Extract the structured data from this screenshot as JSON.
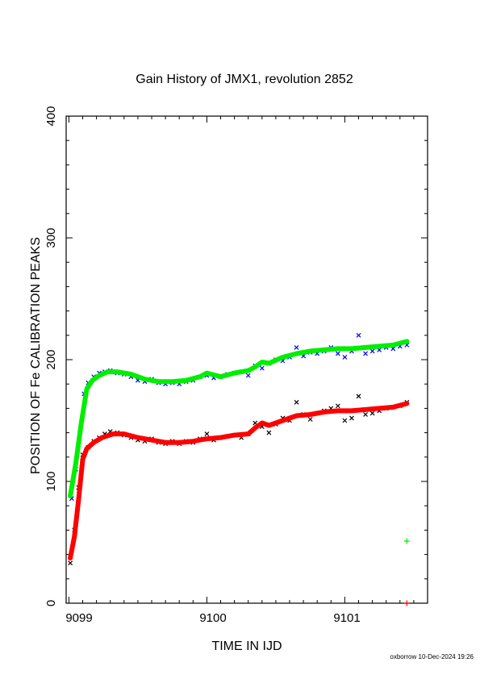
{
  "chart_data": {
    "type": "scatter",
    "title": "Gain History of JMX1, revolution 2852",
    "xlabel": "TIME IN IJD",
    "ylabel": "POSITION OF Fe CALIBRATION PEAKS",
    "xlim": [
      9098.98,
      9101.6
    ],
    "ylim": [
      0,
      400
    ],
    "x_ticks": [
      "9099",
      "9100",
      "9101"
    ],
    "y_ticks": [
      "0",
      "100",
      "200",
      "300",
      "400"
    ],
    "grid": false,
    "series": [
      {
        "color": "#0000ff",
        "marker": "x",
        "x": [
          9099.02,
          9099.05,
          9099.08,
          9099.11,
          9099.14,
          9099.18,
          9099.22,
          9099.26,
          9099.3,
          9099.35,
          9099.4,
          9099.45,
          9099.5,
          9099.55,
          9099.6,
          9099.65,
          9099.7,
          9099.75,
          9099.8,
          9099.85,
          9099.9,
          9099.95,
          9100.0,
          9100.05,
          9100.1,
          9100.15,
          9100.2,
          9100.25,
          9100.3,
          9100.35,
          9100.4,
          9100.45,
          9100.5,
          9100.55,
          9100.6,
          9100.65,
          9100.7,
          9100.75,
          9100.8,
          9100.85,
          9100.9,
          9100.95,
          9101.0,
          9101.05,
          9101.1,
          9101.15,
          9101.2,
          9101.25,
          9101.3,
          9101.35,
          9101.4,
          9101.45
        ],
        "values": [
          86,
          110,
          140,
          172,
          181,
          186,
          189,
          190,
          191,
          189,
          188,
          186,
          183,
          182,
          184,
          181,
          180,
          181,
          180,
          182,
          183,
          186,
          187,
          185,
          186,
          188,
          189,
          190,
          187,
          195,
          193,
          197,
          200,
          199,
          202,
          210,
          203,
          206,
          205,
          207,
          210,
          205,
          202,
          207,
          220,
          205,
          207,
          208,
          210,
          209,
          211,
          212
        ]
      },
      {
        "color": "#000000",
        "marker": "x",
        "x": [
          9099.01,
          9099.04,
          9099.07,
          9099.1,
          9099.14,
          9099.18,
          9099.22,
          9099.26,
          9099.3,
          9099.35,
          9099.4,
          9099.45,
          9099.5,
          9099.55,
          9099.6,
          9099.65,
          9099.7,
          9099.75,
          9099.8,
          9099.85,
          9099.9,
          9099.95,
          9100.0,
          9100.05,
          9100.1,
          9100.15,
          9100.2,
          9100.25,
          9100.3,
          9100.35,
          9100.4,
          9100.45,
          9100.5,
          9100.55,
          9100.6,
          9100.65,
          9100.7,
          9100.75,
          9100.8,
          9100.85,
          9100.9,
          9100.95,
          9101.0,
          9101.05,
          9101.1,
          9101.15,
          9101.2,
          9101.25,
          9101.3,
          9101.35,
          9101.4,
          9101.45
        ],
        "values": [
          33,
          60,
          95,
          122,
          128,
          133,
          136,
          139,
          141,
          140,
          138,
          136,
          134,
          133,
          135,
          132,
          131,
          133,
          131,
          133,
          132,
          135,
          139,
          134,
          136,
          137,
          138,
          136,
          139,
          148,
          145,
          140,
          147,
          152,
          150,
          165,
          155,
          151,
          156,
          158,
          160,
          162,
          150,
          152,
          170,
          155,
          156,
          158,
          160,
          161,
          162,
          165
        ]
      },
      {
        "color": "#00ee00",
        "marker": "line",
        "x": [
          9099.01,
          9099.05,
          9099.09,
          9099.13,
          9099.17,
          9099.22,
          9099.28,
          9099.35,
          9099.45,
          9099.55,
          9099.65,
          9099.75,
          9099.85,
          9099.95,
          9100.0,
          9100.1,
          9100.2,
          9100.3,
          9100.35,
          9100.4,
          9100.45,
          9100.55,
          9100.65,
          9100.75,
          9100.85,
          9100.95,
          9101.05,
          9101.15,
          9101.25,
          9101.35,
          9101.45
        ],
        "values": [
          88,
          115,
          148,
          176,
          183,
          187,
          190,
          190,
          188,
          184,
          182,
          182,
          183,
          186,
          189,
          186,
          189,
          191,
          194,
          198,
          197,
          202,
          205,
          207,
          208,
          209,
          209,
          210,
          211,
          212,
          215
        ]
      },
      {
        "color": "#ff0000",
        "marker": "line",
        "x": [
          9099.01,
          9099.04,
          9099.07,
          9099.1,
          9099.13,
          9099.18,
          9099.24,
          9099.32,
          9099.4,
          9099.5,
          9099.6,
          9099.7,
          9099.8,
          9099.9,
          9100.0,
          9100.1,
          9100.2,
          9100.3,
          9100.35,
          9100.4,
          9100.45,
          9100.55,
          9100.65,
          9100.75,
          9100.85,
          9100.95,
          9101.05,
          9101.15,
          9101.25,
          9101.35,
          9101.45
        ],
        "values": [
          37,
          55,
          85,
          118,
          127,
          132,
          136,
          139,
          139,
          136,
          134,
          132,
          132,
          133,
          135,
          136,
          138,
          139,
          144,
          148,
          146,
          150,
          154,
          155,
          157,
          158,
          158,
          159,
          160,
          161,
          164
        ]
      },
      {
        "color": "#00ee00",
        "marker": "plus",
        "x": [
          9101.45
        ],
        "values": [
          51
        ]
      },
      {
        "color": "#ff0000",
        "marker": "plus",
        "x": [
          9101.45
        ],
        "values": [
          0
        ]
      }
    ]
  },
  "footer": {
    "credit": "oxborrow 10-Dec-2024 19:26"
  }
}
